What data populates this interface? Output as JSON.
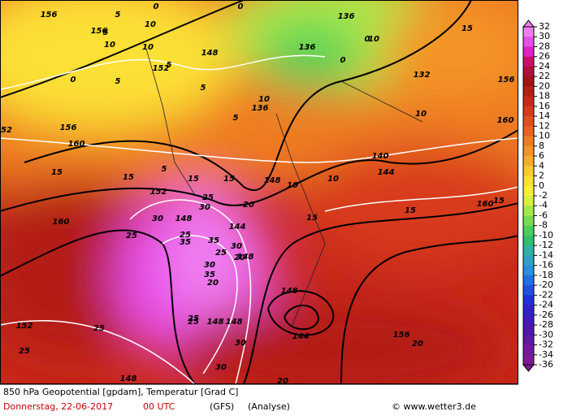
{
  "map": {
    "labels": [
      "156",
      "156",
      "5",
      "0",
      "5",
      "10",
      "10",
      "0",
      "5",
      "148",
      "152",
      "5",
      "10",
      "0",
      "136",
      "136",
      "0",
      "10",
      "0",
      "136",
      "5",
      "15",
      "10",
      "5",
      "132",
      "10",
      "156",
      "160",
      "52",
      "156",
      "160",
      "15",
      "15",
      "5",
      "15",
      "15",
      "10",
      "140",
      "148",
      "10",
      "144",
      "152",
      "25",
      "30",
      "144",
      "20",
      "15",
      "15",
      "160",
      "15",
      "25",
      "160",
      "30",
      "148",
      "25",
      "35",
      "35",
      "30",
      "25",
      "20",
      "30",
      "35",
      "148",
      "148",
      "144",
      "25",
      "148",
      "25",
      "25",
      "20",
      "30",
      "148",
      "25",
      "30",
      "156",
      "20",
      "152",
      "148",
      "20"
    ]
  },
  "legend": {
    "ticks": [
      32,
      30,
      28,
      26,
      24,
      22,
      20,
      18,
      16,
      14,
      12,
      10,
      8,
      6,
      4,
      2,
      0,
      -2,
      -4,
      -6,
      -8,
      -10,
      -12,
      -14,
      -16,
      -18,
      -20,
      -22,
      -24,
      -26,
      -28,
      -30,
      -32,
      -34,
      -36
    ],
    "colors": [
      "#f07ef0",
      "#e84fe8",
      "#e020c8",
      "#c8106e",
      "#b0103c",
      "#a01414",
      "#b41e14",
      "#c8281a",
      "#d83a1c",
      "#e0501e",
      "#e86420",
      "#ee7c22",
      "#f49426",
      "#f8ac2a",
      "#fcc830",
      "#fce034",
      "#f8f038",
      "#d8f040",
      "#a8e848",
      "#78dc50",
      "#48d058",
      "#30c070",
      "#30b0a0",
      "#30a0c8",
      "#2890e0",
      "#2070e8",
      "#2050e0",
      "#2030d8",
      "#3020c8",
      "#4018c0",
      "#5018b0",
      "#6018a8",
      "#7018a0",
      "#801898"
    ]
  },
  "footer": {
    "title": "850 hPa Geopotential [gpdam], Temperatur [Grad C]",
    "date": "Donnerstag, 22-06-2017",
    "time": "00 UTC",
    "model": "(GFS)",
    "run": "(Analyse)",
    "credit": "© www.wetter3.de"
  }
}
